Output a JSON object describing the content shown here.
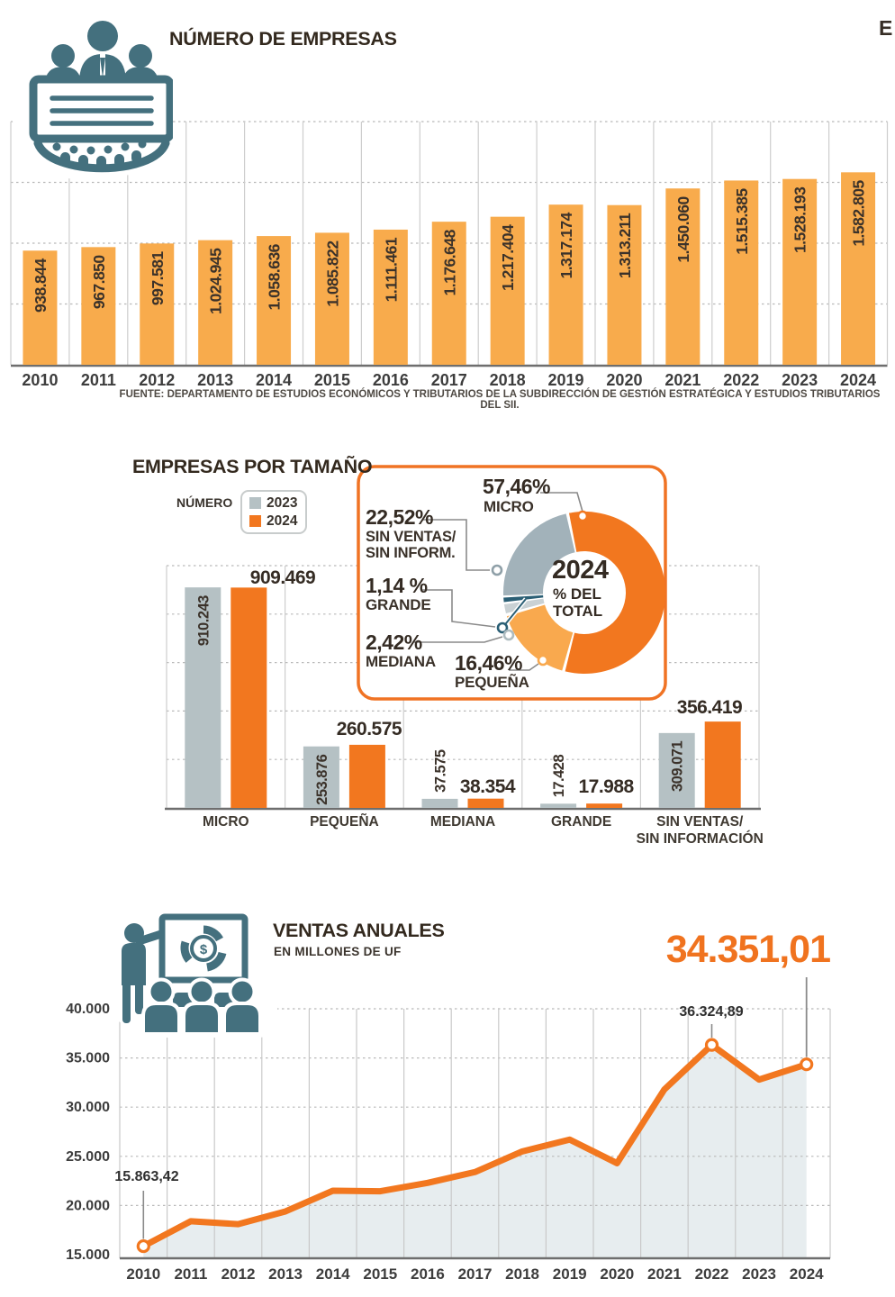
{
  "corner_text": "E",
  "colors": {
    "orange": "#F2771F",
    "light_orange": "#F8AB4C",
    "teal_icon": "#44707E",
    "gray_blue": "#B5C1C4",
    "donut_gray": "#A2B2BA",
    "donut_light_gray": "#C9D1D4",
    "donut_teal": "#2B5F75",
    "area_fill": "#E7EDEF",
    "big_number_orange": "#F0731F"
  },
  "icons": {
    "sales_icon_dollar": "$"
  },
  "chart_data": [
    {
      "type": "bar",
      "title": "NÚMERO DE EMPRESAS",
      "categories": [
        "2010",
        "2011",
        "2012",
        "2013",
        "2014",
        "2015",
        "2016",
        "2017",
        "2018",
        "2019",
        "2020",
        "2021",
        "2022",
        "2023",
        "2024"
      ],
      "values": [
        938844,
        967850,
        997581,
        1024945,
        1058636,
        1085822,
        1111461,
        1176648,
        1217404,
        1317174,
        1313211,
        1450060,
        1515385,
        1528193,
        1582805
      ],
      "value_labels": [
        "938.844",
        "967.850",
        "997.581",
        "1.024.945",
        "1.058.636",
        "1.085.822",
        "1.111.461",
        "1.176.648",
        "1.217.404",
        "1.317.174",
        "1.313.211",
        "1.450.060",
        "1.515.385",
        "1.528.193",
        "1.582.805"
      ],
      "bar_color": "#F8AB4C",
      "ylim": [
        0,
        2000000
      ],
      "grid": "dotted-horizontal, solid-vertical",
      "source": "FUENTE: DEPARTAMENTO DE ESTUDIOS ECONÓMICOS Y TRIBUTARIOS DE LA SUBDIRECCIÓN DE GESTIÓN ESTRATÉGICA Y ESTUDIOS TRIBUTARIOS DEL SII."
    },
    {
      "type": "grouped-bar",
      "title": "EMPRESAS POR TAMAÑO",
      "legend_label": "NÚMERO",
      "categories": [
        [
          "MICRO"
        ],
        [
          "PEQUEÑA"
        ],
        [
          "MEDIANA"
        ],
        [
          "GRANDE"
        ],
        [
          "SIN VENTAS/",
          "SIN INFORMACIÓN"
        ]
      ],
      "series": [
        {
          "name": "2023",
          "color": "#B5C1C4",
          "values": [
            910243,
            253876,
            37575,
            17428,
            309071
          ],
          "labels": [
            "910.243",
            "253.876",
            "37.575",
            "17.428",
            "309.071"
          ]
        },
        {
          "name": "2024",
          "color": "#F2771F",
          "values": [
            909469,
            260575,
            38354,
            17988,
            356419
          ],
          "labels": [
            "909.469",
            "260.575",
            "38.354",
            "17.988",
            "356.419"
          ]
        }
      ],
      "ylim": [
        0,
        1000000
      ],
      "grid": "dotted-horizontal, solid-vertical-group-borders"
    },
    {
      "type": "donut",
      "center_lines": [
        "2024",
        "% DEL",
        "TOTAL"
      ],
      "start_angle_deg": -12,
      "slices": [
        {
          "name": "MICRO",
          "pct": 57.46,
          "pct_label": "57,46%",
          "color": "#F2771F",
          "sub_lines": [
            "MICRO"
          ]
        },
        {
          "name": "PEQUEÑA",
          "pct": 16.46,
          "pct_label": "16,46%",
          "color": "#F9A94E",
          "sub_lines": [
            "PEQUEÑA"
          ]
        },
        {
          "name": "MEDIANA",
          "pct": 2.42,
          "pct_label": "2,42%",
          "color": "#C9D1D4",
          "sub_lines": [
            "MEDIANA"
          ]
        },
        {
          "name": "GRANDE",
          "pct": 1.14,
          "pct_label": "1,14 %",
          "color": "#2B5F75",
          "sub_lines": [
            "GRANDE"
          ]
        },
        {
          "name": "SIN VENTAS",
          "pct": 22.52,
          "pct_label": "22,52%",
          "color": "#A2B2BA",
          "sub_lines": [
            "SIN VENTAS/",
            "SIN INFORM."
          ]
        }
      ]
    },
    {
      "type": "area-line",
      "title": "VENTAS ANUALES",
      "subtitle": "EN MILLONES DE UF",
      "x": [
        "2010",
        "2011",
        "2012",
        "2013",
        "2014",
        "2015",
        "2016",
        "2017",
        "2018",
        "2019",
        "2020",
        "2021",
        "2022",
        "2023",
        "2024"
      ],
      "y": [
        15863.42,
        18400,
        18100,
        19400,
        21500,
        21450,
        22300,
        23400,
        25500,
        26700,
        24300,
        31800,
        36324.89,
        32800,
        34351.01
      ],
      "ytick_labels": [
        "40.000",
        "35.000",
        "30.000",
        "25.000",
        "20.000",
        "15.000"
      ],
      "ylim": [
        15000,
        40000
      ],
      "line_color": "#F2771F",
      "fill_color": "#E7EDEF",
      "marker_indices": [
        0,
        12,
        14
      ],
      "annotations": [
        {
          "x_index": 0,
          "label": "15.863,42"
        },
        {
          "x_index": 12,
          "label": "36.324,89"
        },
        {
          "x_index": 14,
          "label": "34.351,01",
          "emphasis": true
        }
      ]
    }
  ]
}
